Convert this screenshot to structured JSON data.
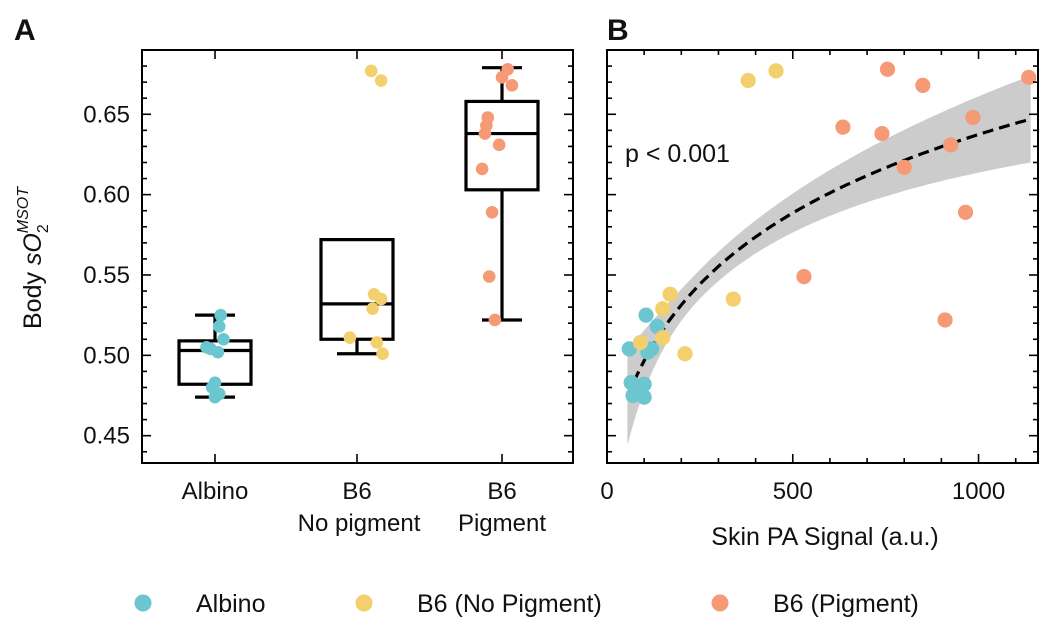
{
  "chart_data": [
    {
      "panel_label": "A",
      "type": "box+strip",
      "ylabel_prefix": "Body ",
      "ylabel_main": "sO",
      "ylabel_sub": "2",
      "ylabel_sup": "MSOT",
      "ylim": [
        0.433,
        0.69
      ],
      "yticks": [
        0.45,
        0.5,
        0.55,
        0.6,
        0.65
      ],
      "ytick_labels": [
        "0.45",
        "0.50",
        "0.55",
        "0.60",
        "0.65"
      ],
      "categories": [
        {
          "lines": [
            "Albino"
          ]
        },
        {
          "lines": [
            "B6",
            "No pigment"
          ]
        },
        {
          "lines": [
            "B6",
            "Pigment"
          ]
        }
      ],
      "boxes": [
        {
          "q1": 0.482,
          "median": 0.503,
          "q3": 0.509,
          "whisker_low": 0.474,
          "whisker_high": 0.525
        },
        {
          "q1": 0.51,
          "median": 0.532,
          "q3": 0.572,
          "whisker_low": 0.501,
          "whisker_high": null
        },
        {
          "q1": 0.603,
          "median": 0.638,
          "q3": 0.658,
          "whisker_low": 0.522,
          "whisker_high": 0.679
        }
      ],
      "points": [
        {
          "group": 0,
          "jitter": 0.04,
          "y": 0.525
        },
        {
          "group": 0,
          "jitter": 0.03,
          "y": 0.518
        },
        {
          "group": 0,
          "jitter": 0.06,
          "y": 0.51
        },
        {
          "group": 0,
          "jitter": -0.06,
          "y": 0.505
        },
        {
          "group": 0,
          "jitter": -0.03,
          "y": 0.504
        },
        {
          "group": 0,
          "jitter": 0.02,
          "y": 0.502
        },
        {
          "group": 0,
          "jitter": 0.0,
          "y": 0.483
        },
        {
          "group": 0,
          "jitter": -0.02,
          "y": 0.48
        },
        {
          "group": 0,
          "jitter": 0.03,
          "y": 0.476
        },
        {
          "group": 0,
          "jitter": 0.0,
          "y": 0.474
        },
        {
          "group": 1,
          "jitter": 0.1,
          "y": 0.677
        },
        {
          "group": 1,
          "jitter": 0.17,
          "y": 0.671
        },
        {
          "group": 1,
          "jitter": 0.12,
          "y": 0.538
        },
        {
          "group": 1,
          "jitter": 0.17,
          "y": 0.535
        },
        {
          "group": 1,
          "jitter": 0.11,
          "y": 0.529
        },
        {
          "group": 1,
          "jitter": -0.05,
          "y": 0.511
        },
        {
          "group": 1,
          "jitter": 0.14,
          "y": 0.508
        },
        {
          "group": 1,
          "jitter": 0.18,
          "y": 0.501
        },
        {
          "group": 2,
          "jitter": 0.04,
          "y": 0.678
        },
        {
          "group": 2,
          "jitter": 0.0,
          "y": 0.673
        },
        {
          "group": 2,
          "jitter": 0.07,
          "y": 0.668
        },
        {
          "group": 2,
          "jitter": -0.1,
          "y": 0.648
        },
        {
          "group": 2,
          "jitter": -0.11,
          "y": 0.643
        },
        {
          "group": 2,
          "jitter": -0.12,
          "y": 0.638
        },
        {
          "group": 2,
          "jitter": -0.02,
          "y": 0.631
        },
        {
          "group": 2,
          "jitter": -0.14,
          "y": 0.616
        },
        {
          "group": 2,
          "jitter": -0.07,
          "y": 0.589
        },
        {
          "group": 2,
          "jitter": -0.09,
          "y": 0.549
        },
        {
          "group": 2,
          "jitter": -0.05,
          "y": 0.522
        }
      ]
    },
    {
      "panel_label": "B",
      "type": "scatter+fit",
      "xlabel": "Skin PA Signal (a.u.)",
      "xlim": [
        0,
        1160
      ],
      "xticks": [
        0,
        500,
        1000
      ],
      "xtick_labels": [
        "0",
        "500",
        "1000"
      ],
      "ylim": [
        0.433,
        0.69
      ],
      "annotation": "p < 0.001",
      "fit": {
        "style": "dashed",
        "x_range": [
          55,
          1140
        ],
        "y_start": 0.474,
        "y_end": 0.647,
        "band_color": "#cccccc",
        "band_halfwidth_ends": [
          0.03,
          0.027
        ],
        "band_halfwidth_min": 0.009
      },
      "points": [
        {
          "group": 0,
          "x": 60,
          "y": 0.504
        },
        {
          "group": 0,
          "x": 105,
          "y": 0.525
        },
        {
          "group": 0,
          "x": 135,
          "y": 0.518
        },
        {
          "group": 0,
          "x": 120,
          "y": 0.504
        },
        {
          "group": 0,
          "x": 110,
          "y": 0.502
        },
        {
          "group": 0,
          "x": 65,
          "y": 0.483
        },
        {
          "group": 0,
          "x": 100,
          "y": 0.482
        },
        {
          "group": 0,
          "x": 80,
          "y": 0.476
        },
        {
          "group": 0,
          "x": 100,
          "y": 0.474
        },
        {
          "group": 0,
          "x": 70,
          "y": 0.475
        },
        {
          "group": 1,
          "x": 380,
          "y": 0.671
        },
        {
          "group": 1,
          "x": 455,
          "y": 0.677
        },
        {
          "group": 1,
          "x": 170,
          "y": 0.538
        },
        {
          "group": 1,
          "x": 340,
          "y": 0.535
        },
        {
          "group": 1,
          "x": 150,
          "y": 0.511
        },
        {
          "group": 1,
          "x": 90,
          "y": 0.508
        },
        {
          "group": 1,
          "x": 210,
          "y": 0.501
        },
        {
          "group": 1,
          "x": 150,
          "y": 0.529
        },
        {
          "group": 2,
          "x": 755,
          "y": 0.678
        },
        {
          "group": 2,
          "x": 850,
          "y": 0.668
        },
        {
          "group": 2,
          "x": 1135,
          "y": 0.673
        },
        {
          "group": 2,
          "x": 635,
          "y": 0.642
        },
        {
          "group": 2,
          "x": 740,
          "y": 0.638
        },
        {
          "group": 2,
          "x": 985,
          "y": 0.648
        },
        {
          "group": 2,
          "x": 925,
          "y": 0.631
        },
        {
          "group": 2,
          "x": 800,
          "y": 0.617
        },
        {
          "group": 2,
          "x": 965,
          "y": 0.589
        },
        {
          "group": 2,
          "x": 530,
          "y": 0.549
        },
        {
          "group": 2,
          "x": 910,
          "y": 0.522
        }
      ]
    }
  ],
  "legend": {
    "placement": "bottom-center",
    "entries": [
      {
        "label": "Albino",
        "color": "#6cc6cf"
      },
      {
        "label": "B6 (No Pigment)",
        "color": "#f4cf6e"
      },
      {
        "label": "B6 (Pigment)",
        "color": "#f59a74"
      }
    ]
  }
}
